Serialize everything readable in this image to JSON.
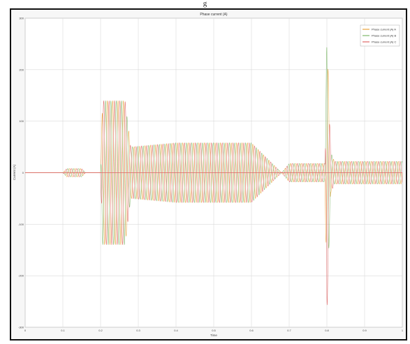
{
  "caption": "g",
  "chart_data": {
    "type": "line",
    "title": "Phase current (A)",
    "xlabel": "Time",
    "ylabel": "Current (A)",
    "grid": true,
    "legend_position": "top-right",
    "xlim": [
      0,
      1
    ],
    "ylim": [
      -300,
      300
    ],
    "xticks": [
      "0",
      "0.1",
      "0.2",
      "0.3",
      "0.4",
      "0.5",
      "0.6",
      "0.7",
      "0.8",
      "0.9",
      "1"
    ],
    "yticks": [
      "300",
      "200",
      "100",
      "0",
      "-100",
      "-200",
      "-300"
    ],
    "series": [
      {
        "name": "Phase current (A) A",
        "color": "#e8a33a"
      },
      {
        "name": "Phase current (A) B",
        "color": "#7fb86b"
      },
      {
        "name": "Phase current (A) C",
        "color": "#e06666"
      }
    ],
    "envelope": [
      {
        "x": 0.0,
        "amp": 0
      },
      {
        "x": 0.1,
        "amp": 0
      },
      {
        "x": 0.11,
        "amp": 8
      },
      {
        "x": 0.15,
        "amp": 8
      },
      {
        "x": 0.16,
        "amp": 0
      },
      {
        "x": 0.2,
        "amp": 0
      },
      {
        "x": 0.205,
        "amp": 140
      },
      {
        "x": 0.265,
        "amp": 140
      },
      {
        "x": 0.28,
        "amp": 50
      },
      {
        "x": 0.4,
        "amp": 58
      },
      {
        "x": 0.6,
        "amp": 58
      },
      {
        "x": 0.68,
        "amp": 0
      },
      {
        "x": 0.7,
        "amp": 18
      },
      {
        "x": 0.795,
        "amp": 18
      },
      {
        "x": 0.8,
        "amp": 280
      },
      {
        "x": 0.81,
        "amp": 40
      },
      {
        "x": 0.82,
        "amp": 22
      },
      {
        "x": 1.0,
        "amp": 22
      }
    ]
  }
}
